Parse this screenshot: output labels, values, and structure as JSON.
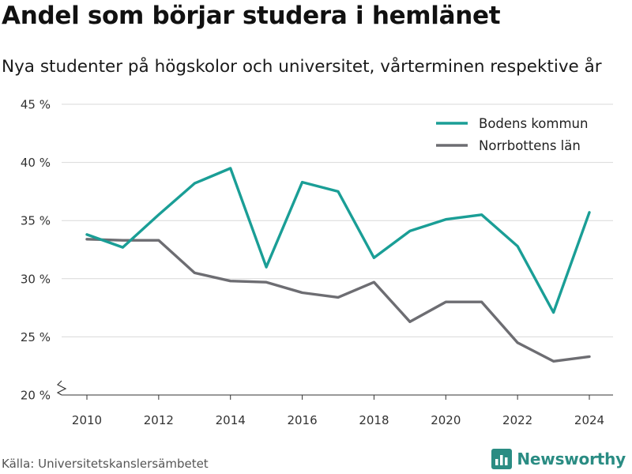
{
  "chart_data": {
    "type": "line",
    "title": "Andel som börjar studera i hemlänet",
    "subtitle": "Nya studenter på högskolor och universitet, vårterminen respektive år",
    "x": [
      2010,
      2011,
      2012,
      2013,
      2014,
      2015,
      2016,
      2017,
      2018,
      2019,
      2020,
      2021,
      2022,
      2023,
      2024
    ],
    "series": [
      {
        "name": "Bodens kommun",
        "color": "#1a9e96",
        "values": [
          33.8,
          32.7,
          35.5,
          38.2,
          39.5,
          31.0,
          38.3,
          37.5,
          31.8,
          34.1,
          35.1,
          35.5,
          32.8,
          27.1,
          35.7
        ]
      },
      {
        "name": "Norrbottens län",
        "color": "#6d6d72",
        "values": [
          33.4,
          33.3,
          33.3,
          30.5,
          29.8,
          29.7,
          28.8,
          28.4,
          29.7,
          26.3,
          28.0,
          28.0,
          24.5,
          22.9,
          23.3
        ]
      }
    ],
    "yticks": [
      {
        "value": 20,
        "label": "20 %"
      },
      {
        "value": 25,
        "label": "25 %"
      },
      {
        "value": 30,
        "label": "30 %"
      },
      {
        "value": 35,
        "label": "35 %"
      },
      {
        "value": 40,
        "label": "40 %"
      },
      {
        "value": 45,
        "label": "45 %"
      }
    ],
    "xticks": [
      "2010",
      "2012",
      "2014",
      "2016",
      "2018",
      "2020",
      "2022",
      "2024"
    ],
    "ylim": [
      20,
      45
    ],
    "grid": true,
    "axis_break": true,
    "legend_position": "top-right"
  },
  "footer": {
    "source": "Källa: Universitetskanslersämbetet",
    "brand": "Newsworthy",
    "logo_icon": "bar-chart-logo-icon"
  }
}
